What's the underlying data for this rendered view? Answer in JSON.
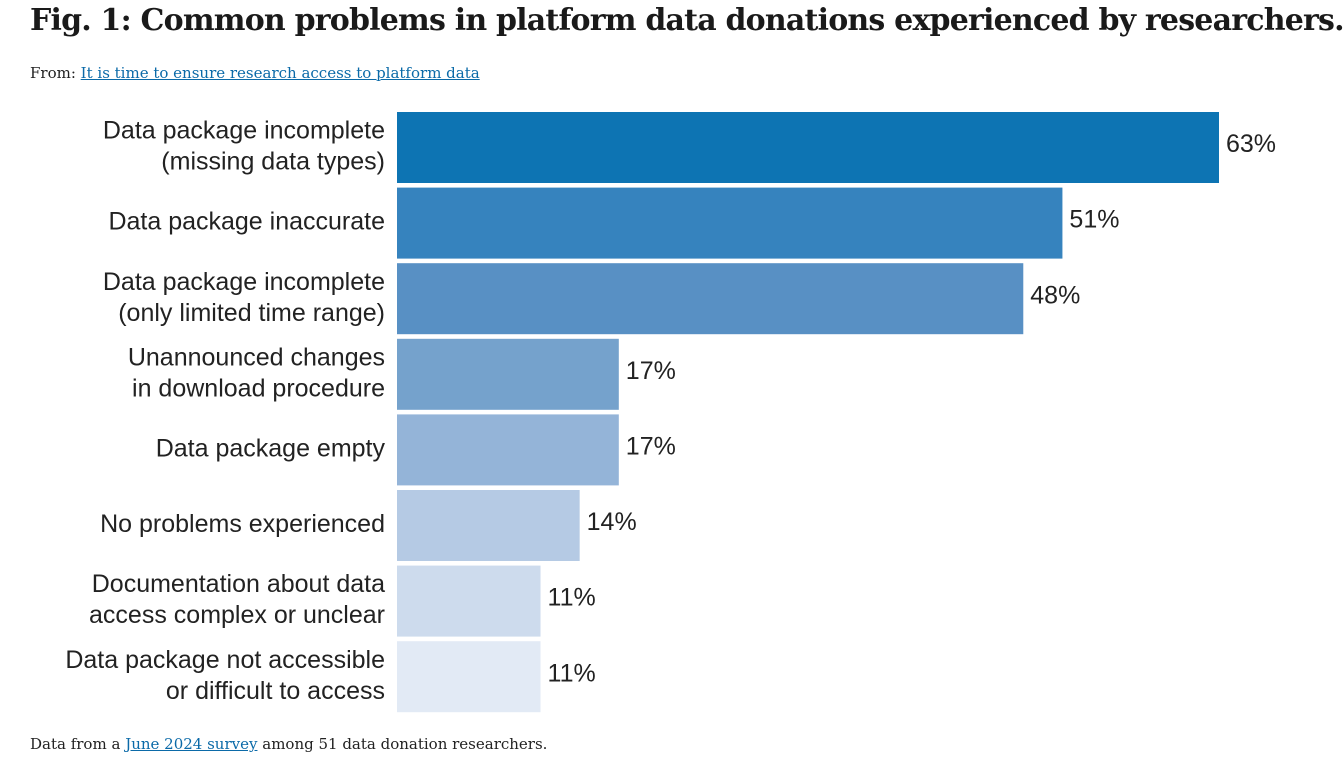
{
  "figure": {
    "title": "Fig. 1: Common problems in platform data donations experienced by researchers.",
    "from_prefix": "From:",
    "from_link": "It is time to ensure research access to platform data",
    "footer_prefix": "Data from a",
    "footer_link": "June 2024 survey",
    "footer_suffix": "among 51 data donation researchers."
  },
  "chart_data": {
    "type": "bar",
    "orientation": "horizontal",
    "unit": "%",
    "categories": [
      [
        "Data package incomplete",
        "(missing data types)"
      ],
      [
        "Data package inaccurate"
      ],
      [
        "Data package incomplete",
        "(only limited time range)"
      ],
      [
        "Unannounced changes",
        "in download procedure"
      ],
      [
        "Data package empty"
      ],
      [
        "No problems experienced"
      ],
      [
        "Documentation about data",
        "access complex or unclear"
      ],
      [
        "Data package not accessible",
        "or difficult to access"
      ]
    ],
    "values": [
      63,
      51,
      48,
      17,
      17,
      14,
      11,
      11
    ],
    "value_labels": [
      "63%",
      "51%",
      "48%",
      "17%",
      "17%",
      "14%",
      "11%",
      "11%"
    ],
    "colors": [
      "#0d74b3",
      "#3683be",
      "#5890c4",
      "#75a2cc",
      "#94b4d8",
      "#b5cae4",
      "#cddbed",
      "#e2eaf5"
    ],
    "xlim": [
      0,
      63
    ],
    "grid": false,
    "legend": "none"
  }
}
